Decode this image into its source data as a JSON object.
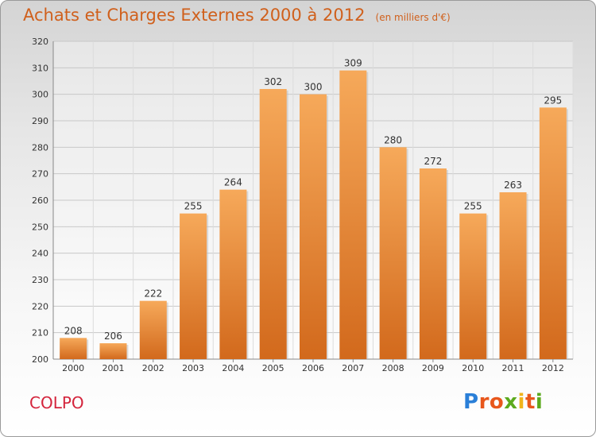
{
  "title": "Achats et Charges Externes 2000 à 2012",
  "subtitle": "(en milliers d'€)",
  "commune": "COLPO",
  "logo_text": "Proxiti",
  "colors": {
    "title": "#d0601c",
    "bar_top": "#f6a95a",
    "bar_bottom": "#d2691c",
    "commune": "#d4243c",
    "logo": [
      "#2a7fd8",
      "#e8571c",
      "#e8571c",
      "#5caa1e",
      "#f0b41c",
      "#e8571c",
      "#5caa1e"
    ]
  },
  "chart_data": {
    "type": "bar",
    "title": "Achats et Charges Externes 2000 à 2012",
    "subtitle": "(en milliers d'€)",
    "categories": [
      "2000",
      "2001",
      "2002",
      "2003",
      "2004",
      "2005",
      "2006",
      "2007",
      "2008",
      "2009",
      "2010",
      "2011",
      "2012"
    ],
    "values": [
      208,
      206,
      222,
      255,
      264,
      302,
      300,
      309,
      280,
      272,
      255,
      263,
      295
    ],
    "ylim": [
      200,
      320
    ],
    "yticks": [
      200,
      210,
      220,
      230,
      240,
      250,
      260,
      270,
      280,
      290,
      300,
      310,
      320
    ],
    "grid": true,
    "legend": "none",
    "data_labels": true
  }
}
